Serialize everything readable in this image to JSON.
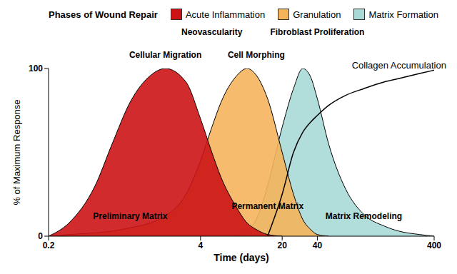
{
  "chart_data": {
    "type": "area",
    "title": "Phases of Wound Repair",
    "x_label": "Time (days)",
    "y_label": "% of Maximum Response",
    "x": [
      0.2,
      0.3,
      0.5,
      0.7,
      1,
      1.5,
      2,
      3,
      4,
      5,
      6,
      8,
      10,
      12,
      15,
      20,
      25,
      30,
      35,
      40,
      50,
      70,
      100,
      150,
      200,
      300,
      400
    ],
    "series": [
      {
        "name": "Acute Inflammation",
        "type": "area",
        "color": "#cc1417",
        "values": [
          0,
          8,
          30,
          55,
          80,
          96,
          100,
          92,
          70,
          50,
          35,
          18,
          8,
          4,
          1,
          0,
          null,
          null,
          null,
          null,
          null,
          null,
          null,
          null,
          null,
          null,
          null
        ]
      },
      {
        "name": "Granulation",
        "type": "area",
        "color": "#f5b45c",
        "values": [
          0,
          1,
          2,
          3,
          5,
          8,
          12,
          25,
          45,
          65,
          80,
          95,
          100,
          96,
          82,
          50,
          25,
          10,
          4,
          1,
          0,
          null,
          null,
          null,
          null,
          null,
          null
        ]
      },
      {
        "name": "Matrix Formation",
        "type": "area",
        "color": "#a9d9d6",
        "values": [
          null,
          null,
          null,
          null,
          null,
          null,
          null,
          null,
          null,
          null,
          null,
          0,
          3,
          10,
          30,
          65,
          88,
          100,
          95,
          82,
          55,
          28,
          13,
          6,
          3,
          1,
          0
        ]
      },
      {
        "name": "Collagen Accumulation",
        "type": "line",
        "color": "#000000",
        "values": [
          null,
          null,
          null,
          null,
          null,
          null,
          null,
          null,
          null,
          null,
          null,
          null,
          null,
          null,
          0,
          25,
          50,
          62,
          68,
          72,
          78,
          84,
          88,
          92,
          94,
          97,
          99
        ]
      }
    ],
    "annotations": [
      {
        "text": "Cellular Migration",
        "x": 2,
        "y": 108
      },
      {
        "text": "Neovascularity",
        "x": 5,
        "y": 122
      },
      {
        "text": "Cell Morphing",
        "x": 12,
        "y": 108
      },
      {
        "text": "Fibroblast Proliferation",
        "x": 40,
        "y": 122
      },
      {
        "text": "Preliminary Matrix",
        "x": 1,
        "y": 12
      },
      {
        "text": "Permanent Matrix",
        "x": 15,
        "y": 18
      },
      {
        "text": "Matrix Remodeling",
        "x": 100,
        "y": 12
      }
    ],
    "log": "x",
    "xlim": [
      0.2,
      400
    ],
    "xticks": [
      0.2,
      4,
      20,
      40,
      400
    ],
    "ylim": [
      0,
      100
    ],
    "yticks": [
      0,
      100
    ],
    "grid": false,
    "legend": "upper left"
  }
}
